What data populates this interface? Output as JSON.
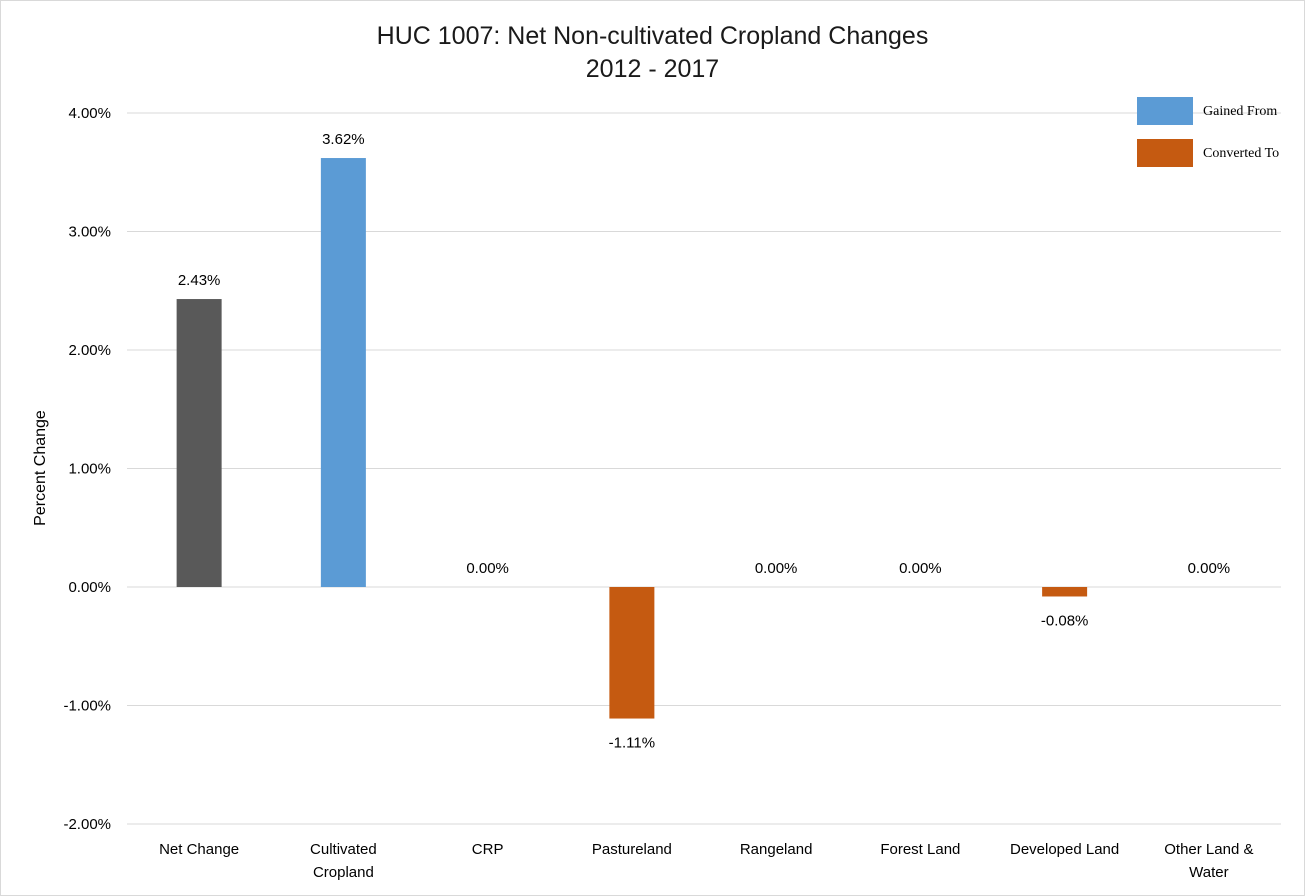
{
  "chart_data": {
    "type": "bar",
    "title": "HUC 1007: Net Non-cultivated Cropland Changes",
    "subtitle": "2012 - 2017",
    "xlabel": "",
    "ylabel": "Percent Change",
    "ylim": [
      -2,
      4
    ],
    "yticks": [
      {
        "value": 4,
        "label": "4.00%"
      },
      {
        "value": 3,
        "label": "3.00%"
      },
      {
        "value": 2,
        "label": "2.00%"
      },
      {
        "value": 1,
        "label": "1.00%"
      },
      {
        "value": 0,
        "label": "0.00%"
      },
      {
        "value": -1,
        "label": "-1.00%"
      },
      {
        "value": -2,
        "label": "-2.00%"
      }
    ],
    "grid": true,
    "legend_position": "top-right",
    "legend": [
      {
        "name": "Gained From",
        "color": "#5b9bd5"
      },
      {
        "name": "Converted To",
        "color": "#c55a11"
      }
    ],
    "categories": [
      [
        "Net Change"
      ],
      [
        "Cultivated",
        "Cropland"
      ],
      [
        "CRP"
      ],
      [
        "Pastureland"
      ],
      [
        "Rangeland"
      ],
      [
        "Forest Land"
      ],
      [
        "Developed Land"
      ],
      [
        "Other Land &",
        "Water"
      ]
    ],
    "values": [
      2.43,
      3.62,
      0.0,
      -1.11,
      0.0,
      0.0,
      -0.08,
      0.0
    ],
    "data_labels": [
      "2.43%",
      "3.62%",
      "0.00%",
      "-1.11%",
      "0.00%",
      "0.00%",
      "-0.08%",
      "0.00%"
    ],
    "bar_colors": [
      "#595959",
      "#5b9bd5",
      "#5b9bd5",
      "#c55a11",
      "#5b9bd5",
      "#5b9bd5",
      "#c55a11",
      "#5b9bd5"
    ]
  }
}
